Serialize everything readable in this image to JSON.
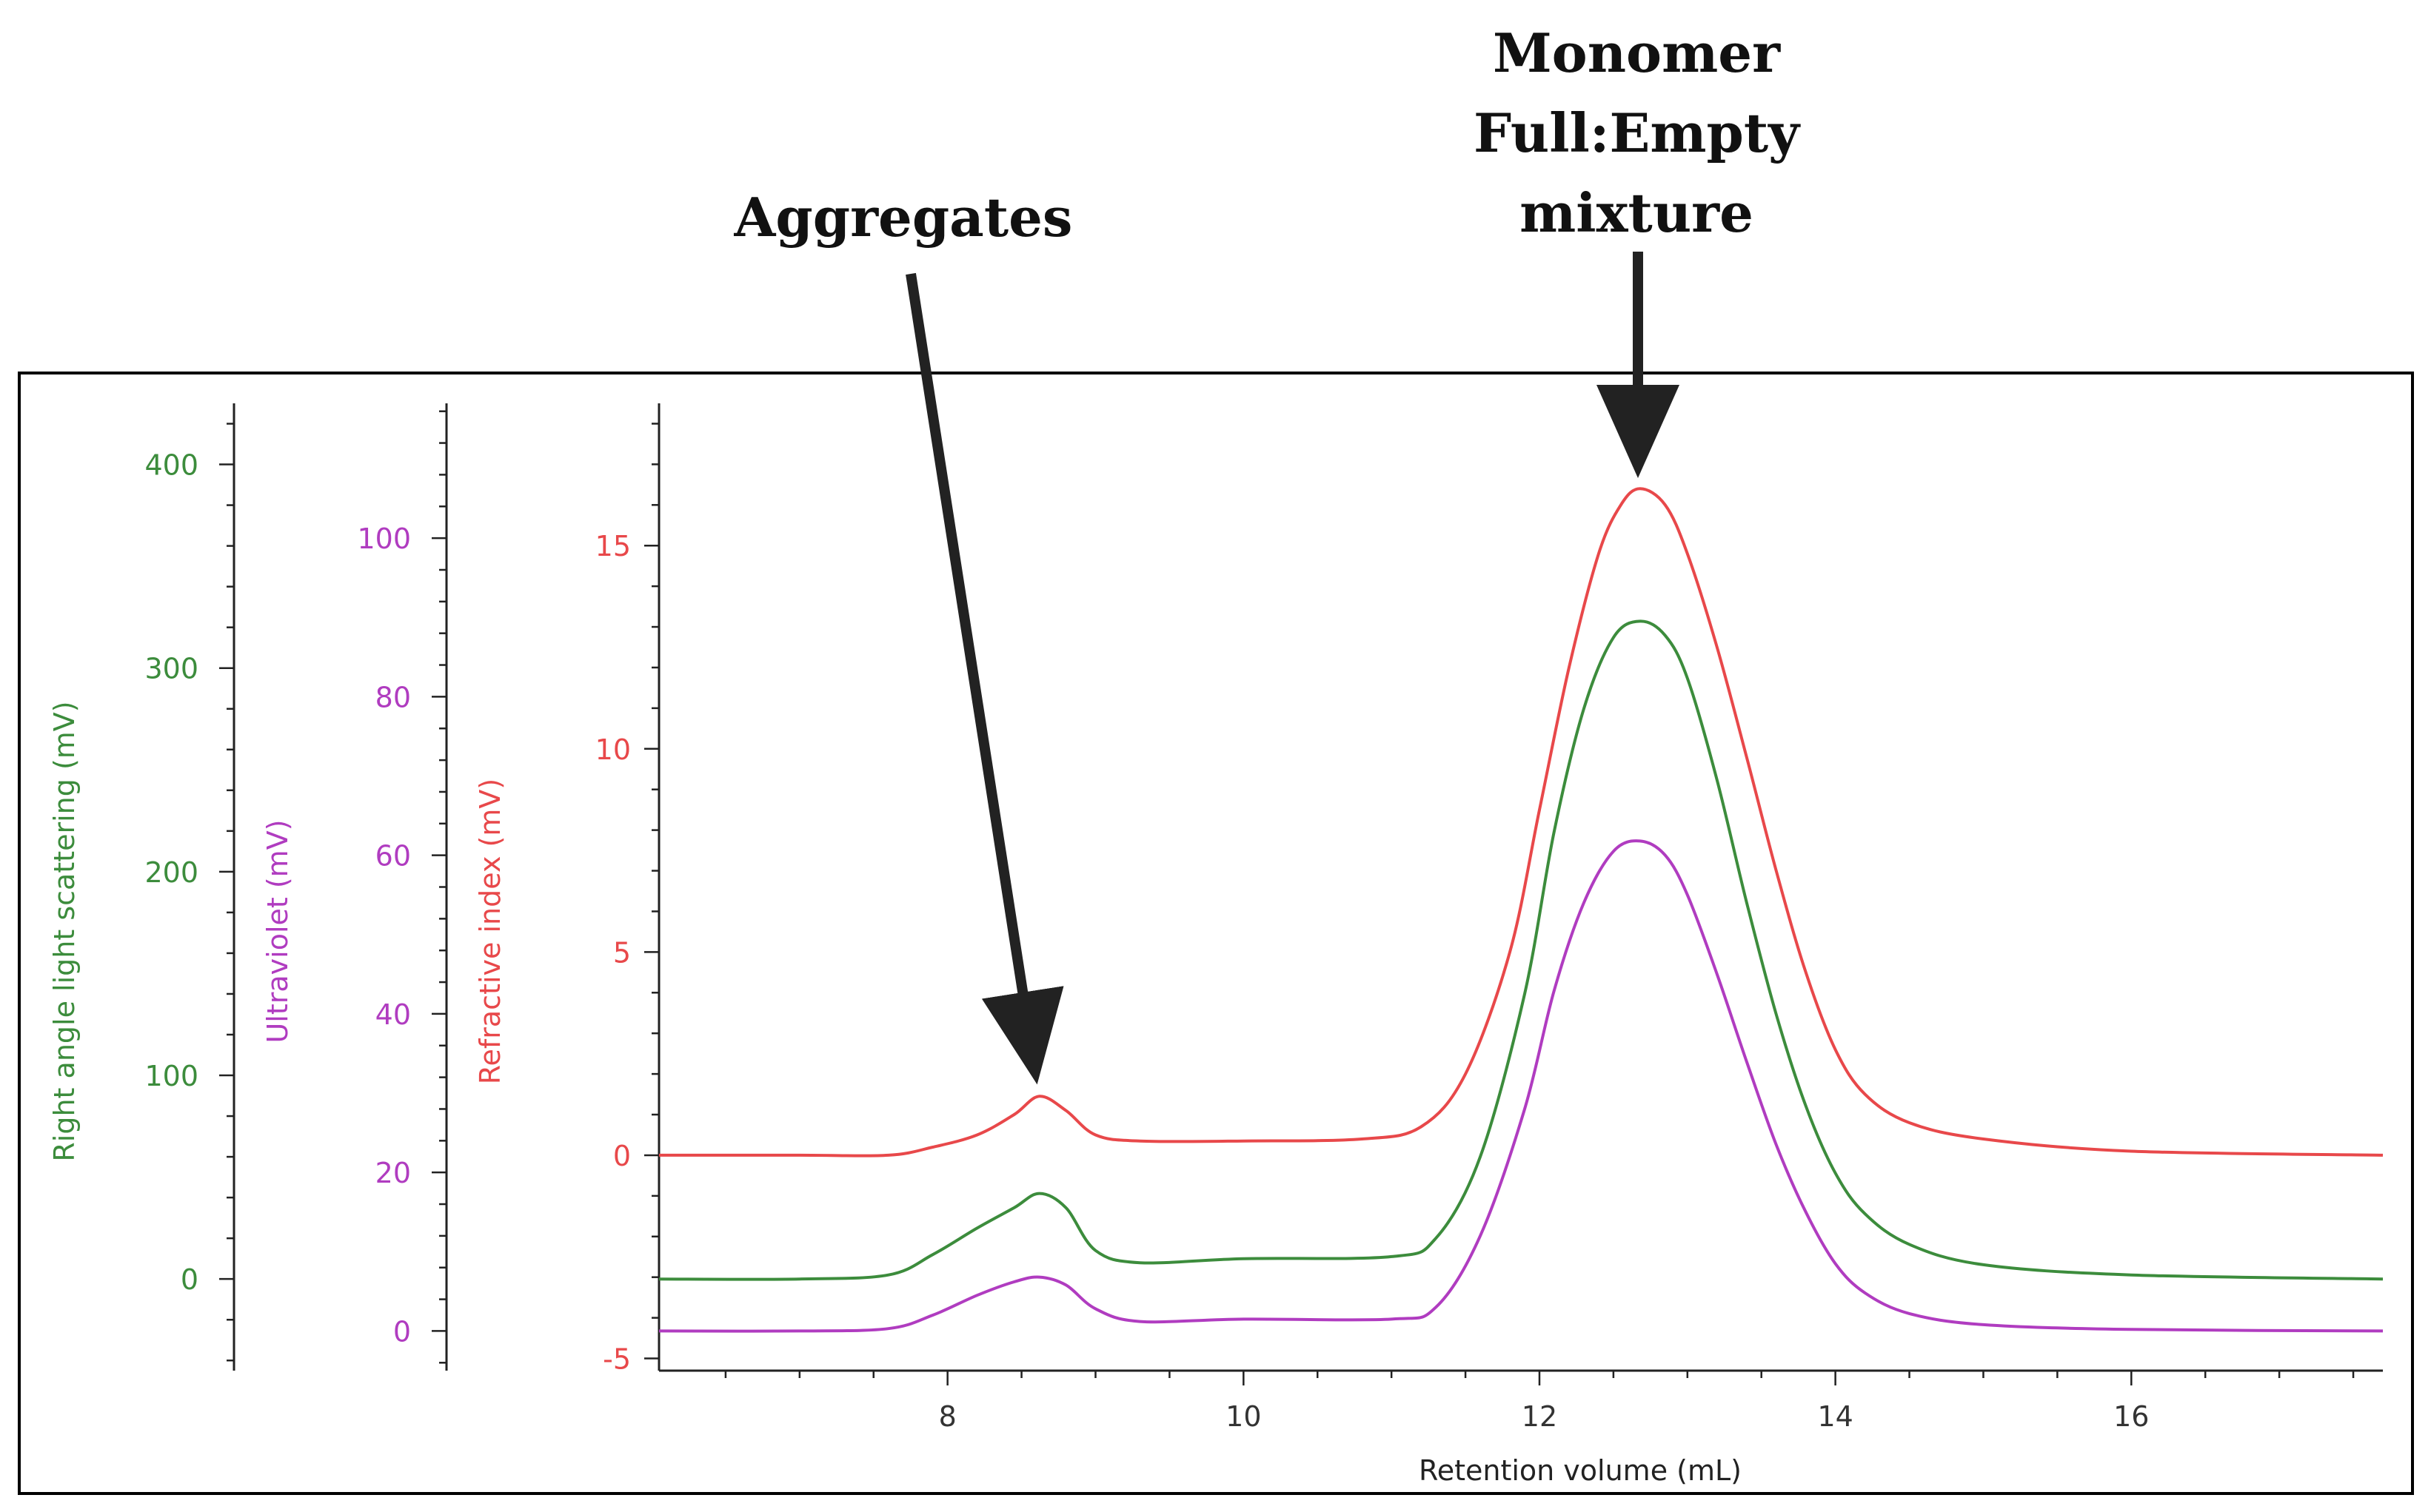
{
  "chart_data": {
    "type": "line",
    "xlabel": "Retention volume (mL)",
    "xlim": [
      6.05,
      17.7
    ],
    "x_ticks": [
      8,
      10,
      12,
      14,
      16
    ],
    "axes": [
      {
        "id": "rals",
        "label": "Right angle light scattering (mV)",
        "color": "#3c8c3c",
        "ylim": [
          -45,
          430
        ],
        "ticks": [
          0,
          100,
          200,
          300,
          400
        ]
      },
      {
        "id": "uv",
        "label": "Ultraviolet (mV)",
        "color": "#b03cc0",
        "ylim": [
          -5,
          117
        ],
        "ticks": [
          0,
          20,
          40,
          60,
          80,
          100
        ]
      },
      {
        "id": "ri",
        "label": "Refractive index (mV)",
        "color": "#e8484a",
        "ylim": [
          -5.3,
          18.5
        ],
        "ticks": [
          -5,
          0,
          5,
          10,
          15
        ]
      }
    ],
    "series": [
      {
        "name": "Refractive index",
        "axis": "ri",
        "color": "#e8484a",
        "points": [
          [
            6.05,
            0
          ],
          [
            7.0,
            0
          ],
          [
            7.6,
            0
          ],
          [
            7.9,
            0.2
          ],
          [
            8.2,
            0.5
          ],
          [
            8.45,
            1.0
          ],
          [
            8.62,
            1.45
          ],
          [
            8.8,
            1.1
          ],
          [
            9.0,
            0.5
          ],
          [
            9.3,
            0.35
          ],
          [
            10.0,
            0.35
          ],
          [
            10.8,
            0.4
          ],
          [
            11.2,
            0.7
          ],
          [
            11.5,
            2.0
          ],
          [
            11.8,
            5.0
          ],
          [
            12.0,
            8.5
          ],
          [
            12.2,
            12.0
          ],
          [
            12.4,
            14.8
          ],
          [
            12.55,
            16.0
          ],
          [
            12.68,
            16.4
          ],
          [
            12.85,
            16.0
          ],
          [
            13.0,
            14.8
          ],
          [
            13.2,
            12.5
          ],
          [
            13.4,
            9.8
          ],
          [
            13.6,
            7.0
          ],
          [
            13.8,
            4.5
          ],
          [
            14.0,
            2.6
          ],
          [
            14.2,
            1.5
          ],
          [
            14.5,
            0.8
          ],
          [
            15.0,
            0.4
          ],
          [
            16.0,
            0.1
          ],
          [
            17.7,
            0
          ]
        ]
      },
      {
        "name": "Right angle light scattering",
        "axis": "rals",
        "color": "#3c8c3c",
        "points": [
          [
            6.05,
            0
          ],
          [
            7.0,
            0
          ],
          [
            7.6,
            2
          ],
          [
            7.9,
            12
          ],
          [
            8.2,
            25
          ],
          [
            8.45,
            35
          ],
          [
            8.62,
            42
          ],
          [
            8.8,
            35
          ],
          [
            9.0,
            14
          ],
          [
            9.3,
            8
          ],
          [
            10.0,
            10
          ],
          [
            11.0,
            11
          ],
          [
            11.3,
            20
          ],
          [
            11.6,
            60
          ],
          [
            11.9,
            140
          ],
          [
            12.1,
            220
          ],
          [
            12.3,
            280
          ],
          [
            12.5,
            315
          ],
          [
            12.68,
            323
          ],
          [
            12.85,
            316
          ],
          [
            13.0,
            295
          ],
          [
            13.2,
            245
          ],
          [
            13.4,
            185
          ],
          [
            13.6,
            130
          ],
          [
            13.8,
            85
          ],
          [
            14.0,
            52
          ],
          [
            14.2,
            32
          ],
          [
            14.5,
            17
          ],
          [
            15.0,
            7
          ],
          [
            16.0,
            2
          ],
          [
            17.7,
            0
          ]
        ]
      },
      {
        "name": "Ultraviolet",
        "axis": "uv",
        "color": "#b03cc0",
        "points": [
          [
            6.05,
            0
          ],
          [
            7.0,
            0
          ],
          [
            7.6,
            0.3
          ],
          [
            7.9,
            2
          ],
          [
            8.2,
            4.5
          ],
          [
            8.45,
            6.2
          ],
          [
            8.62,
            6.8
          ],
          [
            8.8,
            5.8
          ],
          [
            9.0,
            2.8
          ],
          [
            9.3,
            1.2
          ],
          [
            10.0,
            1.5
          ],
          [
            11.0,
            1.5
          ],
          [
            11.3,
            3
          ],
          [
            11.6,
            12
          ],
          [
            11.9,
            28
          ],
          [
            12.1,
            43
          ],
          [
            12.3,
            54
          ],
          [
            12.5,
            60.5
          ],
          [
            12.68,
            61.8
          ],
          [
            12.85,
            60
          ],
          [
            13.0,
            55
          ],
          [
            13.2,
            45
          ],
          [
            13.4,
            34
          ],
          [
            13.6,
            23.5
          ],
          [
            13.8,
            15
          ],
          [
            14.0,
            8.5
          ],
          [
            14.2,
            4.8
          ],
          [
            14.5,
            2.2
          ],
          [
            15.0,
            0.8
          ],
          [
            16.0,
            0.2
          ],
          [
            17.7,
            0
          ]
        ]
      }
    ],
    "annotations": [
      {
        "text": "Aggregates",
        "target_x": 8.62,
        "target_series": "Refractive index"
      },
      {
        "text": "Monomer\nFull:Empty\nmixture",
        "target_x": 12.68,
        "target_series": "Refractive index"
      }
    ]
  }
}
